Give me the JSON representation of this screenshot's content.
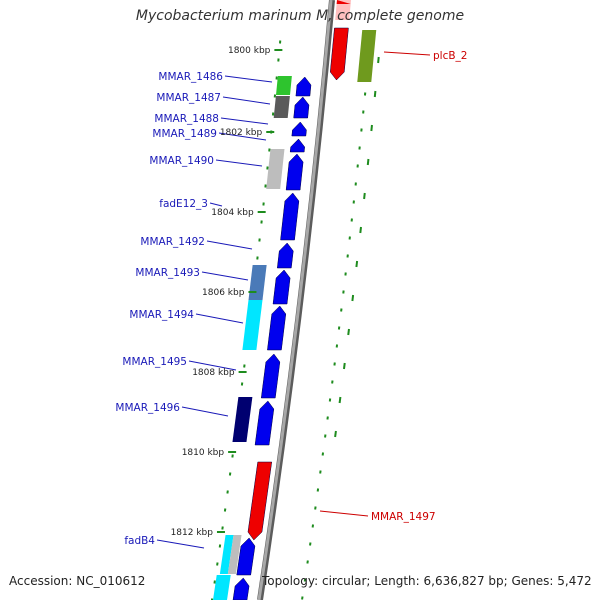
{
  "title": "Mycobacterium marinum M, complete genome",
  "footer": {
    "accession": "Accession: NC_010612",
    "summary": "Topology: circular; Length: 6,636,827 bp; Genes: 5,472"
  },
  "colors": {
    "background": "#ffffff",
    "backbone": "#8a8a8a",
    "dots": "#1e8c1e",
    "forward_gene": "#0000ee",
    "reverse_gene": "#ee0000",
    "forward_label": "#1a1ab8",
    "reverse_label": "#cc0000",
    "tick_label": "#222222"
  },
  "ticks": [
    {
      "text": "1800 kbp"
    },
    {
      "text": "1802 kbp"
    },
    {
      "text": "1804 kbp"
    },
    {
      "text": "1806 kbp"
    },
    {
      "text": "1808 kbp"
    },
    {
      "text": "1810 kbp"
    },
    {
      "text": "1812 kbp"
    }
  ],
  "gene_labels": [
    {
      "text": "MMAR_1486",
      "strand": "forward"
    },
    {
      "text": "MMAR_1487",
      "strand": "forward"
    },
    {
      "text": "MMAR_1488",
      "strand": "forward"
    },
    {
      "text": "MMAR_1489",
      "strand": "forward"
    },
    {
      "text": "MMAR_1490",
      "strand": "forward"
    },
    {
      "text": "fadE12_3",
      "strand": "forward"
    },
    {
      "text": "MMAR_1492",
      "strand": "forward"
    },
    {
      "text": "MMAR_1493",
      "strand": "forward"
    },
    {
      "text": "MMAR_1494",
      "strand": "forward"
    },
    {
      "text": "MMAR_1495",
      "strand": "forward"
    },
    {
      "text": "MMAR_1496",
      "strand": "forward"
    },
    {
      "text": "fadB4",
      "strand": "forward"
    },
    {
      "text": "plcB_2",
      "strand": "reverse"
    },
    {
      "text": "MMAR_1497",
      "strand": "reverse"
    }
  ],
  "cog_blocks": [
    {
      "color": "#2ec42e"
    },
    {
      "color": "#5a5a5a"
    },
    {
      "color": "#bdbdbd"
    },
    {
      "color": "#4a7ab8"
    },
    {
      "color": "#00e6ff"
    },
    {
      "color": "#000070"
    },
    {
      "color": "#00e6ff"
    },
    {
      "color": "#bdbdbd"
    },
    {
      "color": "#00e6ff"
    },
    {
      "color": "#6f9a1e"
    },
    {
      "color": "#ffb0b0"
    }
  ]
}
